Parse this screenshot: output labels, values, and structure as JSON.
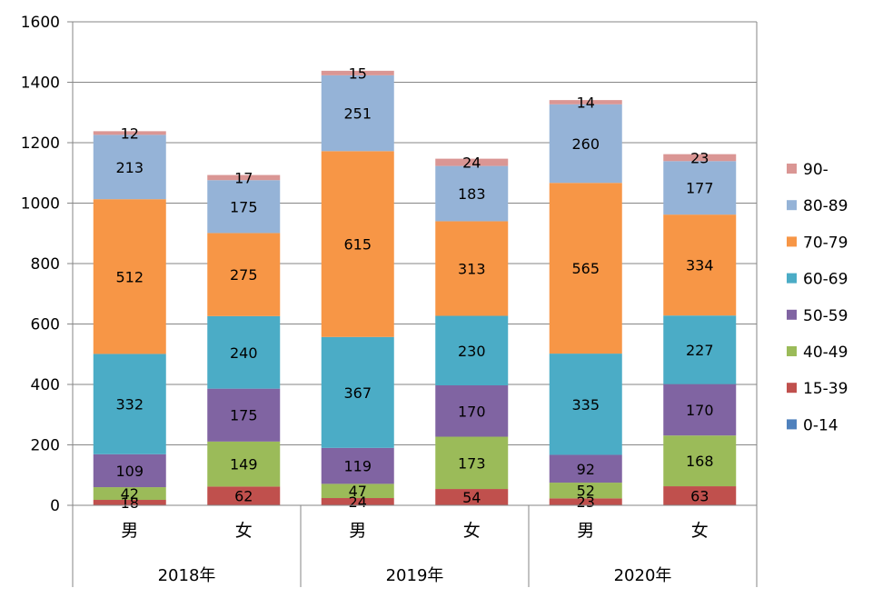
{
  "chart_data": {
    "type": "bar",
    "stacked": true,
    "ylim": [
      0,
      1600
    ],
    "yticks": [
      0,
      200,
      400,
      600,
      800,
      1000,
      1200,
      1400,
      1600
    ],
    "grid": "horizontal",
    "legend_position": "right",
    "categories": [
      "男",
      "女",
      "男",
      "女",
      "男",
      "女"
    ],
    "groups": [
      {
        "label": "2018年",
        "span": 2
      },
      {
        "label": "2019年",
        "span": 2
      },
      {
        "label": "2020年",
        "span": 2
      }
    ],
    "series": [
      {
        "name": "0-14",
        "color": "#4F81BD",
        "values": [
          0,
          0,
          0,
          0,
          0,
          0
        ]
      },
      {
        "name": "15-39",
        "color": "#C0504D",
        "values": [
          18,
          62,
          24,
          54,
          23,
          63
        ]
      },
      {
        "name": "40-49",
        "color": "#9BBB59",
        "values": [
          42,
          149,
          47,
          173,
          52,
          168
        ]
      },
      {
        "name": "50-59",
        "color": "#8064A2",
        "values": [
          109,
          175,
          119,
          170,
          92,
          170
        ]
      },
      {
        "name": "60-69",
        "color": "#4BACC6",
        "values": [
          332,
          240,
          367,
          230,
          335,
          227
        ]
      },
      {
        "name": "70-79",
        "color": "#F79646",
        "values": [
          512,
          275,
          615,
          313,
          565,
          334
        ]
      },
      {
        "name": "80-89",
        "color": "#95B3D7",
        "values": [
          213,
          175,
          251,
          183,
          260,
          177
        ]
      },
      {
        "name": "90-",
        "color": "#DA9694",
        "values": [
          12,
          17,
          15,
          24,
          14,
          23
        ]
      }
    ]
  }
}
